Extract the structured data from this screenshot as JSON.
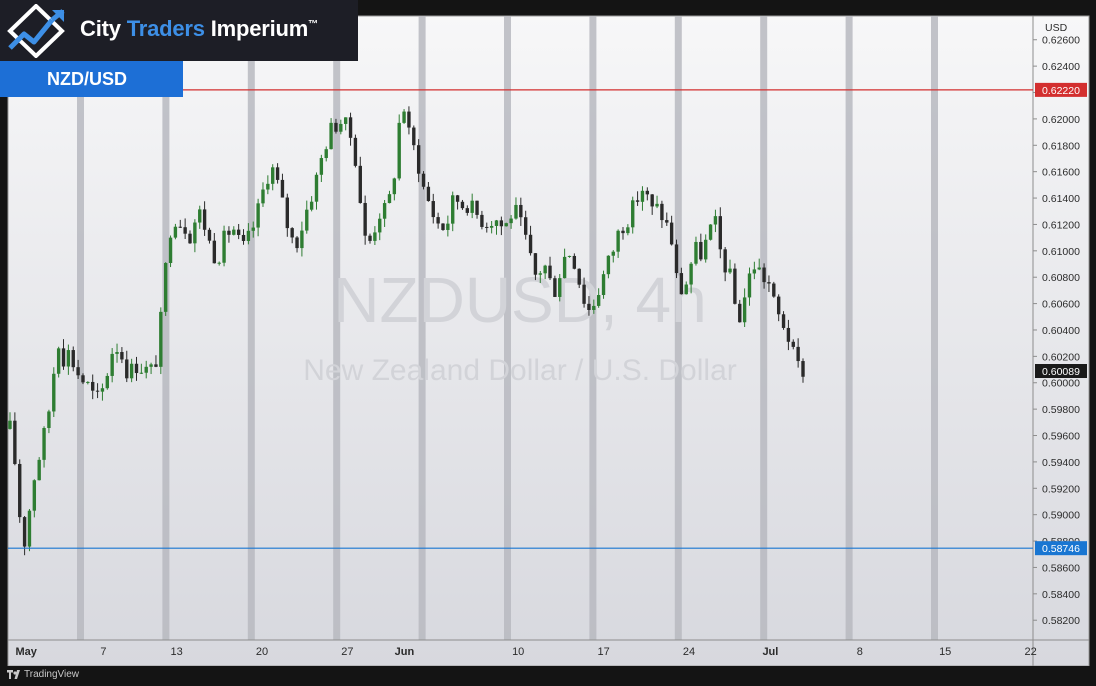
{
  "brand": {
    "name_1": "City",
    "name_2": "Traders",
    "name_3": "Imperium",
    "tm": "™"
  },
  "symbol_tag": "NZD/USD",
  "footer": {
    "text": "TradingView"
  },
  "colors": {
    "up": "#2e7d32",
    "down": "#2a2a2a",
    "resistance": "#d32f2f",
    "support": "#1976d2",
    "weekend_band": "#b7b8c0",
    "price_tag": "#1a1a1a",
    "brand_accent": "#3d8fe6",
    "tag_bg": "#1d6fd6"
  },
  "chart_data": {
    "type": "candlestick",
    "watermark_title": "NZDUSD, 4h",
    "watermark_subtitle": "New Zealand Dollar / U.S. Dollar",
    "currency_label": "USD",
    "ylim": [
      0.5805,
      0.6278
    ],
    "y_ticks": [
      "0.62600",
      "0.62400",
      "0.62200",
      "0.62000",
      "0.61800",
      "0.61600",
      "0.61400",
      "0.61200",
      "0.61000",
      "0.60800",
      "0.60600",
      "0.60400",
      "0.60200",
      "0.60000",
      "0.59800",
      "0.59600",
      "0.59400",
      "0.59200",
      "0.59000",
      "0.58800",
      "0.58600",
      "0.58400",
      "0.58200"
    ],
    "x_labels": [
      {
        "label": "May",
        "day": 1,
        "bold": true
      },
      {
        "label": "7",
        "day": 7
      },
      {
        "label": "13",
        "day": 13
      },
      {
        "label": "20",
        "day": 20
      },
      {
        "label": "27",
        "day": 27
      },
      {
        "label": "Jun",
        "day": 32,
        "bold": true
      },
      {
        "label": "10",
        "day": 41
      },
      {
        "label": "17",
        "day": 48
      },
      {
        "label": "24",
        "day": 55
      },
      {
        "label": "Jul",
        "day": 62,
        "bold": true
      },
      {
        "label": "8",
        "day": 69
      },
      {
        "label": "15",
        "day": 76
      },
      {
        "label": "22",
        "day": 83
      }
    ],
    "weekend_bands_start_day": [
      5,
      12,
      19,
      26,
      33,
      40,
      47,
      54,
      61,
      68,
      75
    ],
    "horizontal_levels": [
      {
        "value": 0.6222,
        "label": "0.62220",
        "role": "resistance"
      },
      {
        "value": 0.58746,
        "label": "0.58746",
        "role": "support"
      }
    ],
    "last_price": {
      "value": 0.60089,
      "label": "0.60089"
    },
    "close_path": [
      [
        0.0,
        0.5965
      ],
      [
        0.3,
        0.595
      ],
      [
        0.6,
        0.592
      ],
      [
        0.9,
        0.589
      ],
      [
        1.2,
        0.588
      ],
      [
        1.6,
        0.5905
      ],
      [
        2.0,
        0.593
      ],
      [
        2.4,
        0.5945
      ],
      [
        2.8,
        0.596
      ],
      [
        3.2,
        0.598
      ],
      [
        3.6,
        0.601
      ],
      [
        3.9,
        0.604
      ],
      [
        4.2,
        0.6015
      ],
      [
        4.6,
        0.6025
      ],
      [
        5.0,
        0.602
      ],
      [
        5.4,
        0.601
      ],
      [
        5.9,
        0.6003
      ],
      [
        6.6,
        0.5995
      ],
      [
        7.0,
        0.5985
      ],
      [
        7.4,
        0.599
      ],
      [
        7.8,
        0.6
      ],
      [
        8.2,
        0.602
      ],
      [
        8.6,
        0.603
      ],
      [
        9.0,
        0.6025
      ],
      [
        9.4,
        0.6015
      ],
      [
        9.8,
        0.6005
      ],
      [
        10.2,
        0.6015
      ],
      [
        10.8,
        0.6012
      ],
      [
        11.4,
        0.6008
      ],
      [
        11.8,
        0.601
      ],
      [
        12.2,
        0.603
      ],
      [
        12.6,
        0.607
      ],
      [
        13.0,
        0.611
      ],
      [
        13.4,
        0.613
      ],
      [
        13.8,
        0.612
      ],
      [
        14.2,
        0.6125
      ],
      [
        14.6,
        0.611
      ],
      [
        15.0,
        0.6118
      ],
      [
        15.4,
        0.613
      ],
      [
        15.8,
        0.6125
      ],
      [
        16.2,
        0.611
      ],
      [
        16.6,
        0.61
      ],
      [
        17.0,
        0.6095
      ],
      [
        17.4,
        0.6105
      ],
      [
        17.8,
        0.6112
      ],
      [
        18.2,
        0.612
      ],
      [
        18.6,
        0.611
      ],
      [
        19.0,
        0.61
      ],
      [
        19.4,
        0.6105
      ],
      [
        19.8,
        0.6115
      ],
      [
        20.2,
        0.6125
      ],
      [
        20.6,
        0.614
      ],
      [
        21.0,
        0.6155
      ],
      [
        21.4,
        0.6165
      ],
      [
        21.8,
        0.6155
      ],
      [
        22.2,
        0.614
      ],
      [
        22.6,
        0.6125
      ],
      [
        23.0,
        0.611
      ],
      [
        23.4,
        0.6105
      ],
      [
        23.8,
        0.6115
      ],
      [
        24.2,
        0.6128
      ],
      [
        24.6,
        0.614
      ],
      [
        25.0,
        0.615
      ],
      [
        25.4,
        0.6165
      ],
      [
        25.8,
        0.618
      ],
      [
        26.2,
        0.619
      ],
      [
        26.6,
        0.6195
      ],
      [
        27.0,
        0.62
      ],
      [
        27.4,
        0.6195
      ],
      [
        27.8,
        0.619
      ],
      [
        28.2,
        0.618
      ],
      [
        28.6,
        0.615
      ],
      [
        29.0,
        0.611
      ],
      [
        29.4,
        0.6105
      ],
      [
        29.8,
        0.6115
      ],
      [
        30.2,
        0.613
      ],
      [
        30.6,
        0.6128
      ],
      [
        31.0,
        0.6135
      ],
      [
        31.4,
        0.615
      ],
      [
        31.8,
        0.619
      ],
      [
        32.2,
        0.6215
      ],
      [
        32.6,
        0.619
      ],
      [
        33.0,
        0.618
      ],
      [
        33.4,
        0.617
      ],
      [
        33.8,
        0.615
      ],
      [
        34.2,
        0.614
      ],
      [
        34.6,
        0.613
      ],
      [
        35.0,
        0.6122
      ],
      [
        35.4,
        0.6118
      ],
      [
        35.8,
        0.612
      ],
      [
        36.2,
        0.6135
      ],
      [
        36.6,
        0.614
      ],
      [
        37.0,
        0.6135
      ],
      [
        37.4,
        0.6138
      ],
      [
        37.8,
        0.6132
      ],
      [
        38.2,
        0.6128
      ],
      [
        38.6,
        0.6125
      ],
      [
        39.0,
        0.6122
      ],
      [
        39.4,
        0.6124
      ],
      [
        39.8,
        0.6125
      ],
      [
        40.2,
        0.612
      ],
      [
        40.6,
        0.6118
      ],
      [
        41.0,
        0.6128
      ],
      [
        41.4,
        0.613
      ],
      [
        41.8,
        0.612
      ],
      [
        42.2,
        0.611
      ],
      [
        42.6,
        0.6095
      ],
      [
        43.0,
        0.608
      ],
      [
        43.4,
        0.6085
      ],
      [
        43.8,
        0.609
      ],
      [
        44.2,
        0.6078
      ],
      [
        44.6,
        0.607
      ],
      [
        45.0,
        0.6082
      ],
      [
        45.4,
        0.6095
      ],
      [
        45.8,
        0.61
      ],
      [
        46.2,
        0.6095
      ],
      [
        46.6,
        0.608
      ],
      [
        47.0,
        0.6065
      ],
      [
        47.4,
        0.6055
      ],
      [
        47.8,
        0.606
      ],
      [
        48.2,
        0.607
      ],
      [
        48.6,
        0.608
      ],
      [
        49.0,
        0.609
      ],
      [
        49.4,
        0.61
      ],
      [
        49.8,
        0.6112
      ],
      [
        50.2,
        0.612
      ],
      [
        50.6,
        0.6125
      ],
      [
        51.0,
        0.613
      ],
      [
        51.4,
        0.614
      ],
      [
        51.8,
        0.6148
      ],
      [
        52.2,
        0.614
      ],
      [
        52.6,
        0.613
      ],
      [
        53.0,
        0.6132
      ],
      [
        53.4,
        0.6128
      ],
      [
        53.8,
        0.612
      ],
      [
        54.2,
        0.611
      ],
      [
        54.6,
        0.608
      ],
      [
        55.0,
        0.607
      ],
      [
        55.4,
        0.6075
      ],
      [
        55.8,
        0.609
      ],
      [
        56.2,
        0.61
      ],
      [
        56.6,
        0.6098
      ],
      [
        57.0,
        0.6105
      ],
      [
        57.4,
        0.6115
      ],
      [
        57.8,
        0.612
      ],
      [
        58.2,
        0.61
      ],
      [
        58.6,
        0.609
      ],
      [
        59.0,
        0.608
      ],
      [
        59.4,
        0.606
      ],
      [
        59.8,
        0.605
      ],
      [
        60.2,
        0.6065
      ],
      [
        60.6,
        0.608
      ],
      [
        61.0,
        0.609
      ],
      [
        61.4,
        0.6085
      ],
      [
        61.8,
        0.608
      ],
      [
        62.2,
        0.6075
      ],
      [
        62.6,
        0.606
      ],
      [
        63.0,
        0.605
      ],
      [
        63.4,
        0.6045
      ],
      [
        63.8,
        0.6035
      ],
      [
        64.2,
        0.602
      ],
      [
        64.6,
        0.6012
      ],
      [
        65.0,
        0.601
      ]
    ],
    "candle_count": 164,
    "candle_seed": 17
  }
}
